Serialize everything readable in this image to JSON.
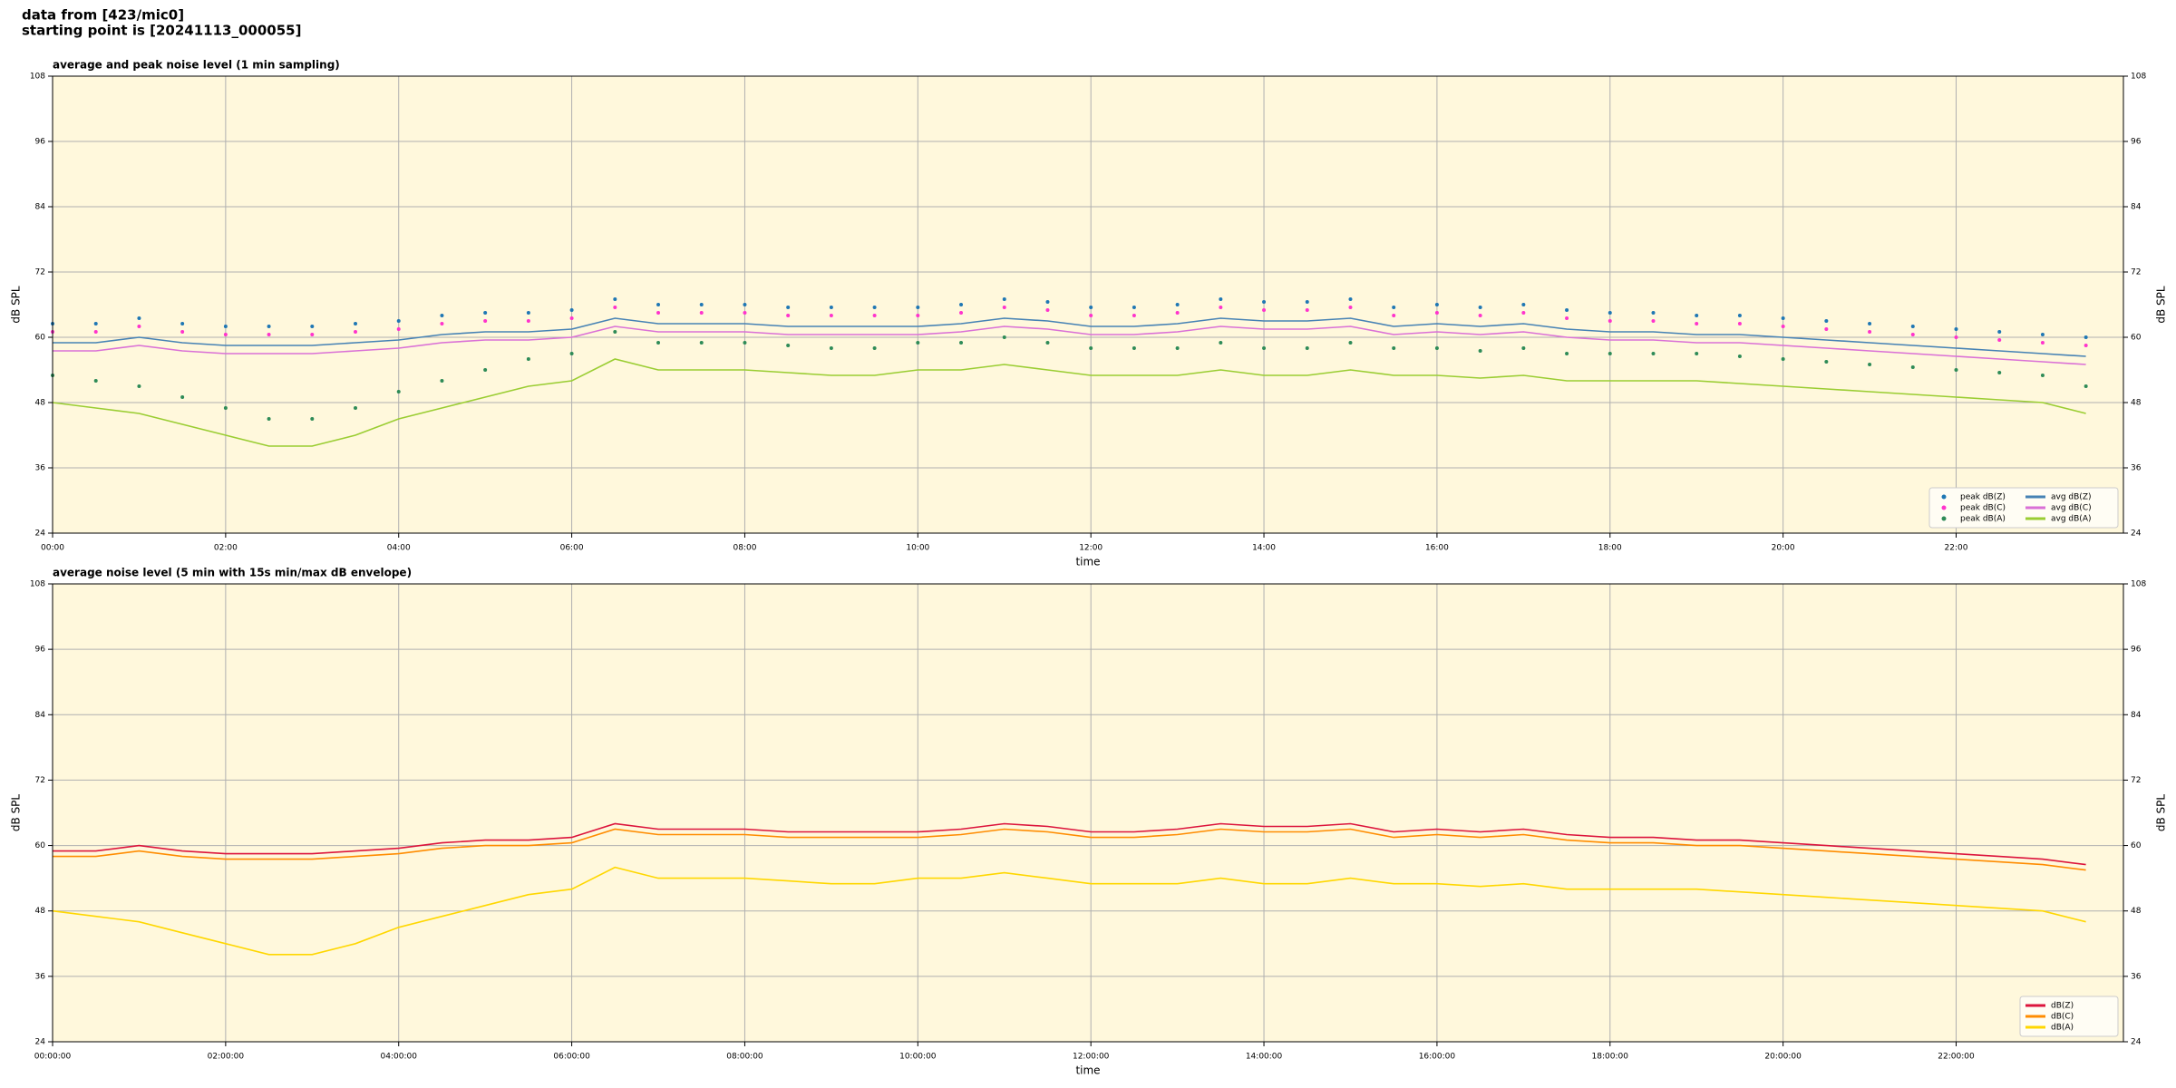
{
  "header": {
    "line1": "data from [423/mic0]",
    "line2": "starting point is [20241113_000055]"
  },
  "chart_data": [
    {
      "type": "line",
      "title": "average and peak noise level (1 min sampling)",
      "xlabel": "time",
      "ylabel": "dB SPL",
      "x": [
        0,
        30,
        60,
        90,
        120,
        150,
        180,
        210,
        240,
        270,
        300,
        330,
        360,
        390,
        420,
        450,
        480,
        510,
        540,
        570,
        600,
        630,
        660,
        690,
        720,
        750,
        780,
        810,
        840,
        870,
        900,
        930,
        960,
        990,
        1020,
        1050,
        1080,
        1110,
        1140,
        1170,
        1200,
        1230,
        1260,
        1290,
        1320,
        1350,
        1380,
        1410
      ],
      "xlim": [
        0,
        1436
      ],
      "xticks": [
        {
          "value": 0,
          "label": "00:00"
        },
        {
          "value": 120,
          "label": "02:00"
        },
        {
          "value": 240,
          "label": "04:00"
        },
        {
          "value": 360,
          "label": "06:00"
        },
        {
          "value": 480,
          "label": "08:00"
        },
        {
          "value": 600,
          "label": "10:00"
        },
        {
          "value": 720,
          "label": "12:00"
        },
        {
          "value": 840,
          "label": "14:00"
        },
        {
          "value": 960,
          "label": "16:00"
        },
        {
          "value": 1080,
          "label": "18:00"
        },
        {
          "value": 1200,
          "label": "20:00"
        },
        {
          "value": 1320,
          "label": "22:00"
        }
      ],
      "ylim": [
        24,
        108
      ],
      "yticks": [
        24,
        36,
        48,
        60,
        72,
        84,
        96,
        108
      ],
      "grid": true,
      "legend": "lower right",
      "legend_columns": 2,
      "series": [
        {
          "name": "peak dB(Z)",
          "color": "#1f77b4",
          "style": "dots",
          "values": [
            62.5,
            62.5,
            63.5,
            62.5,
            62,
            62,
            62,
            62.5,
            63,
            64,
            64.5,
            64.5,
            65,
            67,
            66,
            66,
            66,
            65.5,
            65.5,
            65.5,
            65.5,
            66,
            67,
            66.5,
            65.5,
            65.5,
            66,
            67,
            66.5,
            66.5,
            67,
            65.5,
            66,
            65.5,
            66,
            65,
            64.5,
            64.5,
            64,
            64,
            63.5,
            63,
            62.5,
            62,
            61.5,
            61,
            60.5,
            60
          ]
        },
        {
          "name": "peak dB(C)",
          "color": "#ff33cc",
          "style": "dots",
          "values": [
            61,
            61,
            62,
            61,
            60.5,
            60.5,
            60.5,
            61,
            61.5,
            62.5,
            63,
            63,
            63.5,
            65.5,
            64.5,
            64.5,
            64.5,
            64,
            64,
            64,
            64,
            64.5,
            65.5,
            65,
            64,
            64,
            64.5,
            65.5,
            65,
            65,
            65.5,
            64,
            64.5,
            64,
            64.5,
            63.5,
            63,
            63,
            62.5,
            62.5,
            62,
            61.5,
            61,
            60.5,
            60,
            59.5,
            59,
            58.5
          ]
        },
        {
          "name": "peak dB(A)",
          "color": "#2e8b57",
          "style": "dots",
          "values": [
            53,
            52,
            51,
            49,
            47,
            45,
            45,
            47,
            50,
            52,
            54,
            56,
            57,
            61,
            59,
            59,
            59,
            58.5,
            58,
            58,
            59,
            59,
            60,
            59,
            58,
            58,
            58,
            59,
            58,
            58,
            59,
            58,
            58,
            57.5,
            58,
            57,
            57,
            57,
            57,
            56.5,
            56,
            55.5,
            55,
            54.5,
            54,
            53.5,
            53,
            51
          ]
        },
        {
          "name": "avg dB(Z)",
          "color": "#4682b4",
          "style": "line",
          "values": [
            59,
            59,
            60,
            59,
            58.5,
            58.5,
            58.5,
            59,
            59.5,
            60.5,
            61,
            61,
            61.5,
            63.5,
            62.5,
            62.5,
            62.5,
            62,
            62,
            62,
            62,
            62.5,
            63.5,
            63,
            62,
            62,
            62.5,
            63.5,
            63,
            63,
            63.5,
            62,
            62.5,
            62,
            62.5,
            61.5,
            61,
            61,
            60.5,
            60.5,
            60,
            59.5,
            59,
            58.5,
            58,
            57.5,
            57,
            56.5
          ]
        },
        {
          "name": "avg dB(C)",
          "color": "#da70d6",
          "style": "line",
          "values": [
            57.5,
            57.5,
            58.5,
            57.5,
            57,
            57,
            57,
            57.5,
            58,
            59,
            59.5,
            59.5,
            60,
            62,
            61,
            61,
            61,
            60.5,
            60.5,
            60.5,
            60.5,
            61,
            62,
            61.5,
            60.5,
            60.5,
            61,
            62,
            61.5,
            61.5,
            62,
            60.5,
            61,
            60.5,
            61,
            60,
            59.5,
            59.5,
            59,
            59,
            58.5,
            58,
            57.5,
            57,
            56.5,
            56,
            55.5,
            55
          ]
        },
        {
          "name": "avg dB(A)",
          "color": "#9acd32",
          "style": "line",
          "values": [
            48,
            47,
            46,
            44,
            42,
            40,
            40,
            42,
            45,
            47,
            49,
            51,
            52,
            56,
            54,
            54,
            54,
            53.5,
            53,
            53,
            54,
            54,
            55,
            54,
            53,
            53,
            53,
            54,
            53,
            53,
            54,
            53,
            53,
            52.5,
            53,
            52,
            52,
            52,
            52,
            51.5,
            51,
            50.5,
            50,
            49.5,
            49,
            48.5,
            48,
            46
          ]
        }
      ]
    },
    {
      "type": "line",
      "title": "average noise level (5 min with 15s min/max dB envelope)",
      "xlabel": "time",
      "ylabel": "dB SPL",
      "x": [
        0,
        30,
        60,
        90,
        120,
        150,
        180,
        210,
        240,
        270,
        300,
        330,
        360,
        390,
        420,
        450,
        480,
        510,
        540,
        570,
        600,
        630,
        660,
        690,
        720,
        750,
        780,
        810,
        840,
        870,
        900,
        930,
        960,
        990,
        1020,
        1050,
        1080,
        1110,
        1140,
        1170,
        1200,
        1230,
        1260,
        1290,
        1320,
        1350,
        1380,
        1410
      ],
      "xlim": [
        0,
        1436
      ],
      "xticks": [
        {
          "value": 0,
          "label": "00:00:00"
        },
        {
          "value": 120,
          "label": "02:00:00"
        },
        {
          "value": 240,
          "label": "04:00:00"
        },
        {
          "value": 360,
          "label": "06:00:00"
        },
        {
          "value": 480,
          "label": "08:00:00"
        },
        {
          "value": 600,
          "label": "10:00:00"
        },
        {
          "value": 720,
          "label": "12:00:00"
        },
        {
          "value": 840,
          "label": "14:00:00"
        },
        {
          "value": 960,
          "label": "16:00:00"
        },
        {
          "value": 1080,
          "label": "18:00:00"
        },
        {
          "value": 1200,
          "label": "20:00:00"
        },
        {
          "value": 1320,
          "label": "22:00:00"
        }
      ],
      "ylim": [
        24,
        108
      ],
      "yticks": [
        24,
        36,
        48,
        60,
        72,
        84,
        96,
        108
      ],
      "grid": true,
      "legend": "lower right",
      "legend_columns": 1,
      "series": [
        {
          "name": "dB(Z)",
          "color": "#dc143c",
          "style": "line",
          "values": [
            59,
            59,
            60,
            59,
            58.5,
            58.5,
            58.5,
            59,
            59.5,
            60.5,
            61,
            61,
            61.5,
            64,
            63,
            63,
            63,
            62.5,
            62.5,
            62.5,
            62.5,
            63,
            64,
            63.5,
            62.5,
            62.5,
            63,
            64,
            63.5,
            63.5,
            64,
            62.5,
            63,
            62.5,
            63,
            62,
            61.5,
            61.5,
            61,
            61,
            60.5,
            60,
            59.5,
            59,
            58.5,
            58,
            57.5,
            56.5
          ]
        },
        {
          "name": "dB(C)",
          "color": "#ff8c00",
          "style": "line",
          "values": [
            58,
            58,
            59,
            58,
            57.5,
            57.5,
            57.5,
            58,
            58.5,
            59.5,
            60,
            60,
            60.5,
            63,
            62,
            62,
            62,
            61.5,
            61.5,
            61.5,
            61.5,
            62,
            63,
            62.5,
            61.5,
            61.5,
            62,
            63,
            62.5,
            62.5,
            63,
            61.5,
            62,
            61.5,
            62,
            61,
            60.5,
            60.5,
            60,
            60,
            59.5,
            59,
            58.5,
            58,
            57.5,
            57,
            56.5,
            55.5
          ]
        },
        {
          "name": "dB(A)",
          "color": "#ffd700",
          "style": "line",
          "values": [
            48,
            47,
            46,
            44,
            42,
            40,
            40,
            42,
            45,
            47,
            49,
            51,
            52,
            56,
            54,
            54,
            54,
            53.5,
            53,
            53,
            54,
            54,
            55,
            54,
            53,
            53,
            53,
            54,
            53,
            53,
            54,
            53,
            53,
            52.5,
            53,
            52,
            52,
            52,
            52,
            51.5,
            51,
            50.5,
            50,
            49.5,
            49,
            48.5,
            48,
            46
          ]
        }
      ]
    }
  ]
}
